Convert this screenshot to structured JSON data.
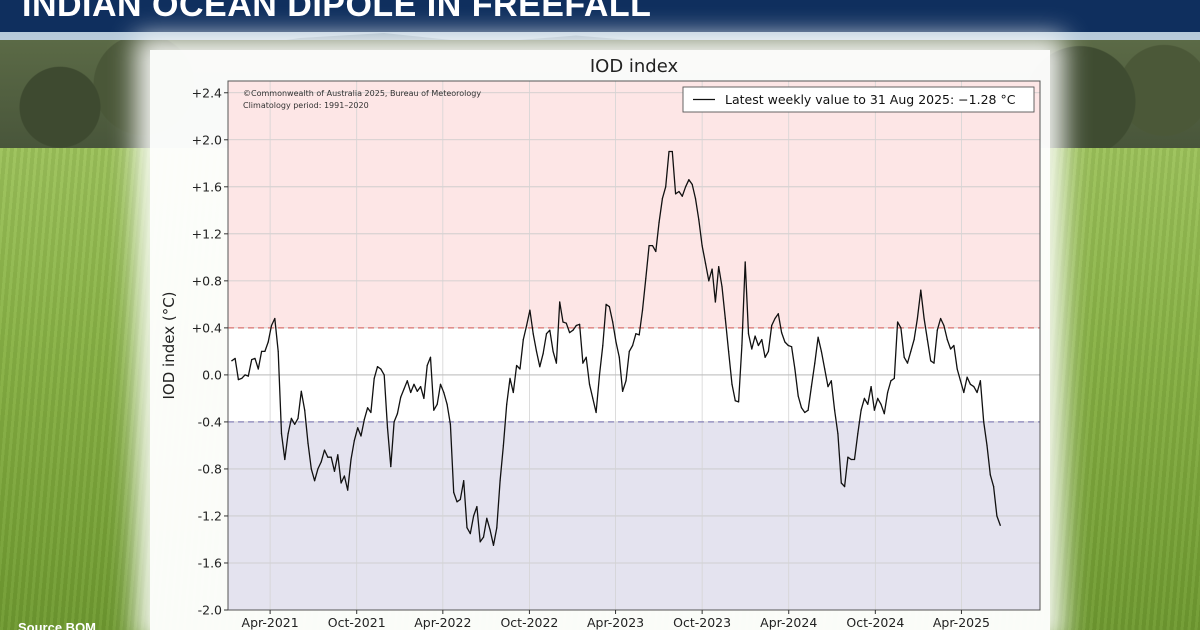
{
  "header": {
    "title": "INDIAN OCEAN DIPOLE IN FREEFALL"
  },
  "source": {
    "text": "Source BOM"
  },
  "chart_data": {
    "type": "line",
    "title": "IOD index",
    "ylabel": "IOD index (°C)",
    "xlabel": "",
    "ylim": [
      -2.0,
      2.5
    ],
    "yticks": [
      "+2.4",
      "+2.0",
      "+1.6",
      "+1.2",
      "+0.8",
      "+0.4",
      "0.0",
      "-0.4",
      "-0.8",
      "-1.2",
      "-1.6",
      "-2.0"
    ],
    "ytick_values": [
      2.4,
      2.0,
      1.6,
      1.2,
      0.8,
      0.4,
      0.0,
      -0.4,
      -0.8,
      -1.2,
      -1.6,
      -2.0
    ],
    "xticks": [
      "Apr-2021",
      "Oct-2021",
      "Apr-2022",
      "Oct-2022",
      "Apr-2023",
      "Oct-2023",
      "Apr-2024",
      "Oct-2024",
      "Apr-2025"
    ],
    "x_start": "2021-01-02",
    "x_end": "2025-09-14",
    "thresholds": {
      "positive": 0.4,
      "negative": -0.4
    },
    "grid": true,
    "legend_position": "top-right",
    "annotation_lines": [
      "©Commonwealth of Australia 2025, Bureau of Meteorology",
      "Climatology period: 1991–2020"
    ],
    "legend": "Latest weekly value to 31 Aug 2025: −1.28 °C",
    "colors": {
      "positive_band": "#fde6e6",
      "negative_band": "#e4e3ef",
      "positive_line": "#d9726f",
      "negative_line": "#8580b6",
      "series": "#111111",
      "title_bar": "#0f2f5e"
    },
    "series": [
      {
        "points": [
          [
            "2021-01-10",
            0.12
          ],
          [
            "2021-01-17",
            0.14
          ],
          [
            "2021-01-24",
            -0.04
          ],
          [
            "2021-01-31",
            -0.03
          ],
          [
            "2021-02-07",
            0.0
          ],
          [
            "2021-02-14",
            -0.01
          ],
          [
            "2021-02-21",
            0.13
          ],
          [
            "2021-02-28",
            0.14
          ],
          [
            "2021-03-07",
            0.05
          ],
          [
            "2021-03-14",
            0.2
          ],
          [
            "2021-03-21",
            0.2
          ],
          [
            "2021-03-28",
            0.28
          ],
          [
            "2021-04-04",
            0.42
          ],
          [
            "2021-04-11",
            0.48
          ],
          [
            "2021-04-18",
            0.2
          ],
          [
            "2021-04-25",
            -0.5
          ],
          [
            "2021-05-02",
            -0.72
          ],
          [
            "2021-05-09",
            -0.5
          ],
          [
            "2021-05-16",
            -0.37
          ],
          [
            "2021-05-23",
            -0.42
          ],
          [
            "2021-05-30",
            -0.37
          ],
          [
            "2021-06-06",
            -0.14
          ],
          [
            "2021-06-13",
            -0.3
          ],
          [
            "2021-06-20",
            -0.58
          ],
          [
            "2021-06-27",
            -0.8
          ],
          [
            "2021-07-04",
            -0.9
          ],
          [
            "2021-07-11",
            -0.8
          ],
          [
            "2021-07-18",
            -0.74
          ],
          [
            "2021-07-25",
            -0.64
          ],
          [
            "2021-08-01",
            -0.7
          ],
          [
            "2021-08-08",
            -0.7
          ],
          [
            "2021-08-15",
            -0.82
          ],
          [
            "2021-08-22",
            -0.68
          ],
          [
            "2021-08-29",
            -0.92
          ],
          [
            "2021-09-05",
            -0.86
          ],
          [
            "2021-09-12",
            -0.98
          ],
          [
            "2021-09-19",
            -0.72
          ],
          [
            "2021-09-26",
            -0.56
          ],
          [
            "2021-10-03",
            -0.45
          ],
          [
            "2021-10-10",
            -0.52
          ],
          [
            "2021-10-17",
            -0.38
          ],
          [
            "2021-10-24",
            -0.28
          ],
          [
            "2021-10-31",
            -0.32
          ],
          [
            "2021-11-07",
            -0.03
          ],
          [
            "2021-11-14",
            0.07
          ],
          [
            "2021-11-21",
            0.05
          ],
          [
            "2021-11-28",
            0.0
          ],
          [
            "2021-12-05",
            -0.45
          ],
          [
            "2021-12-12",
            -0.78
          ],
          [
            "2021-12-19",
            -0.4
          ],
          [
            "2021-12-26",
            -0.33
          ],
          [
            "2022-01-02",
            -0.19
          ],
          [
            "2022-01-09",
            -0.12
          ],
          [
            "2022-01-16",
            -0.05
          ],
          [
            "2022-01-23",
            -0.15
          ],
          [
            "2022-01-30",
            -0.08
          ],
          [
            "2022-02-06",
            -0.14
          ],
          [
            "2022-02-13",
            -0.1
          ],
          [
            "2022-02-20",
            -0.2
          ],
          [
            "2022-02-27",
            0.08
          ],
          [
            "2022-03-06",
            0.15
          ],
          [
            "2022-03-13",
            -0.3
          ],
          [
            "2022-03-20",
            -0.25
          ],
          [
            "2022-03-27",
            -0.08
          ],
          [
            "2022-04-03",
            -0.15
          ],
          [
            "2022-04-10",
            -0.25
          ],
          [
            "2022-04-17",
            -0.42
          ],
          [
            "2022-04-24",
            -1.0
          ],
          [
            "2022-05-01",
            -1.08
          ],
          [
            "2022-05-08",
            -1.06
          ],
          [
            "2022-05-15",
            -0.9
          ],
          [
            "2022-05-22",
            -1.3
          ],
          [
            "2022-05-29",
            -1.35
          ],
          [
            "2022-06-05",
            -1.2
          ],
          [
            "2022-06-12",
            -1.12
          ],
          [
            "2022-06-19",
            -1.42
          ],
          [
            "2022-06-26",
            -1.38
          ],
          [
            "2022-07-03",
            -1.22
          ],
          [
            "2022-07-10",
            -1.32
          ],
          [
            "2022-07-17",
            -1.45
          ],
          [
            "2022-07-24",
            -1.3
          ],
          [
            "2022-07-31",
            -0.9
          ],
          [
            "2022-08-07",
            -0.6
          ],
          [
            "2022-08-14",
            -0.25
          ],
          [
            "2022-08-21",
            -0.03
          ],
          [
            "2022-08-28",
            -0.15
          ],
          [
            "2022-09-04",
            0.08
          ],
          [
            "2022-09-11",
            0.05
          ],
          [
            "2022-09-18",
            0.3
          ],
          [
            "2022-09-25",
            0.42
          ],
          [
            "2022-10-02",
            0.55
          ],
          [
            "2022-10-09",
            0.35
          ],
          [
            "2022-10-16",
            0.2
          ],
          [
            "2022-10-23",
            0.07
          ],
          [
            "2022-10-30",
            0.18
          ],
          [
            "2022-11-06",
            0.35
          ],
          [
            "2022-11-13",
            0.38
          ],
          [
            "2022-11-20",
            0.2
          ],
          [
            "2022-11-27",
            0.1
          ],
          [
            "2022-12-04",
            0.62
          ],
          [
            "2022-12-11",
            0.45
          ],
          [
            "2022-12-18",
            0.44
          ],
          [
            "2022-12-25",
            0.36
          ],
          [
            "2023-01-01",
            0.38
          ],
          [
            "2023-01-08",
            0.42
          ],
          [
            "2023-01-15",
            0.43
          ],
          [
            "2023-01-22",
            0.1
          ],
          [
            "2023-01-29",
            0.15
          ],
          [
            "2023-02-05",
            -0.08
          ],
          [
            "2023-02-12",
            -0.2
          ],
          [
            "2023-02-19",
            -0.32
          ],
          [
            "2023-02-26",
            0.0
          ],
          [
            "2023-03-05",
            0.25
          ],
          [
            "2023-03-12",
            0.6
          ],
          [
            "2023-03-19",
            0.58
          ],
          [
            "2023-03-26",
            0.45
          ],
          [
            "2023-04-02",
            0.28
          ],
          [
            "2023-04-09",
            0.15
          ],
          [
            "2023-04-16",
            -0.14
          ],
          [
            "2023-04-23",
            -0.05
          ],
          [
            "2023-04-30",
            0.2
          ],
          [
            "2023-05-07",
            0.25
          ],
          [
            "2023-05-14",
            0.35
          ],
          [
            "2023-05-21",
            0.34
          ],
          [
            "2023-05-28",
            0.55
          ],
          [
            "2023-06-04",
            0.82
          ],
          [
            "2023-06-11",
            1.1
          ],
          [
            "2023-06-18",
            1.1
          ],
          [
            "2023-06-25",
            1.05
          ],
          [
            "2023-07-02",
            1.3
          ],
          [
            "2023-07-09",
            1.5
          ],
          [
            "2023-07-16",
            1.6
          ],
          [
            "2023-07-23",
            1.9
          ],
          [
            "2023-07-30",
            1.9
          ],
          [
            "2023-08-06",
            1.54
          ],
          [
            "2023-08-13",
            1.56
          ],
          [
            "2023-08-20",
            1.52
          ],
          [
            "2023-08-27",
            1.6
          ],
          [
            "2023-09-03",
            1.66
          ],
          [
            "2023-09-10",
            1.62
          ],
          [
            "2023-09-17",
            1.5
          ],
          [
            "2023-09-24",
            1.32
          ],
          [
            "2023-10-01",
            1.1
          ],
          [
            "2023-10-08",
            0.95
          ],
          [
            "2023-10-15",
            0.8
          ],
          [
            "2023-10-22",
            0.9
          ],
          [
            "2023-10-29",
            0.62
          ],
          [
            "2023-11-05",
            0.92
          ],
          [
            "2023-11-12",
            0.75
          ],
          [
            "2023-11-19",
            0.48
          ],
          [
            "2023-11-26",
            0.2
          ],
          [
            "2023-12-03",
            -0.08
          ],
          [
            "2023-12-10",
            -0.22
          ],
          [
            "2023-12-17",
            -0.23
          ],
          [
            "2023-12-24",
            0.25
          ],
          [
            "2023-12-31",
            0.96
          ],
          [
            "2024-01-07",
            0.35
          ],
          [
            "2024-01-14",
            0.22
          ],
          [
            "2024-01-21",
            0.33
          ],
          [
            "2024-01-28",
            0.25
          ],
          [
            "2024-02-04",
            0.3
          ],
          [
            "2024-02-11",
            0.15
          ],
          [
            "2024-02-18",
            0.2
          ],
          [
            "2024-02-25",
            0.42
          ],
          [
            "2024-03-03",
            0.48
          ],
          [
            "2024-03-10",
            0.52
          ],
          [
            "2024-03-17",
            0.36
          ],
          [
            "2024-03-24",
            0.28
          ],
          [
            "2024-03-31",
            0.25
          ],
          [
            "2024-04-07",
            0.24
          ],
          [
            "2024-04-14",
            0.05
          ],
          [
            "2024-04-21",
            -0.18
          ],
          [
            "2024-04-28",
            -0.28
          ],
          [
            "2024-05-05",
            -0.32
          ],
          [
            "2024-05-12",
            -0.3
          ],
          [
            "2024-05-19",
            -0.1
          ],
          [
            "2024-05-26",
            0.1
          ],
          [
            "2024-06-02",
            0.32
          ],
          [
            "2024-06-09",
            0.2
          ],
          [
            "2024-06-16",
            0.05
          ],
          [
            "2024-06-23",
            -0.1
          ],
          [
            "2024-06-30",
            -0.05
          ],
          [
            "2024-07-07",
            -0.3
          ],
          [
            "2024-07-14",
            -0.5
          ],
          [
            "2024-07-21",
            -0.92
          ],
          [
            "2024-07-28",
            -0.95
          ],
          [
            "2024-08-04",
            -0.7
          ],
          [
            "2024-08-11",
            -0.72
          ],
          [
            "2024-08-18",
            -0.72
          ],
          [
            "2024-08-25",
            -0.5
          ],
          [
            "2024-09-01",
            -0.3
          ],
          [
            "2024-09-08",
            -0.2
          ],
          [
            "2024-09-15",
            -0.25
          ],
          [
            "2024-09-22",
            -0.1
          ],
          [
            "2024-09-29",
            -0.3
          ],
          [
            "2024-10-06",
            -0.2
          ],
          [
            "2024-10-13",
            -0.25
          ],
          [
            "2024-10-20",
            -0.33
          ],
          [
            "2024-10-27",
            -0.15
          ],
          [
            "2024-11-03",
            -0.05
          ],
          [
            "2024-11-10",
            -0.03
          ],
          [
            "2024-11-17",
            0.45
          ],
          [
            "2024-11-24",
            0.4
          ],
          [
            "2024-12-01",
            0.15
          ],
          [
            "2024-12-08",
            0.1
          ],
          [
            "2024-12-15",
            0.2
          ],
          [
            "2024-12-22",
            0.3
          ],
          [
            "2024-12-29",
            0.48
          ],
          [
            "2025-01-05",
            0.72
          ],
          [
            "2025-01-12",
            0.48
          ],
          [
            "2025-01-19",
            0.3
          ],
          [
            "2025-01-26",
            0.12
          ],
          [
            "2025-02-02",
            0.1
          ],
          [
            "2025-02-09",
            0.38
          ],
          [
            "2025-02-16",
            0.48
          ],
          [
            "2025-02-23",
            0.42
          ],
          [
            "2025-03-02",
            0.3
          ],
          [
            "2025-03-09",
            0.22
          ],
          [
            "2025-03-16",
            0.25
          ],
          [
            "2025-03-23",
            0.05
          ],
          [
            "2025-03-30",
            -0.05
          ],
          [
            "2025-04-06",
            -0.15
          ],
          [
            "2025-04-13",
            -0.02
          ],
          [
            "2025-04-20",
            -0.08
          ],
          [
            "2025-04-27",
            -0.1
          ],
          [
            "2025-05-04",
            -0.15
          ],
          [
            "2025-05-11",
            -0.05
          ],
          [
            "2025-05-18",
            -0.4
          ],
          [
            "2025-05-25",
            -0.6
          ],
          [
            "2025-06-01",
            -0.85
          ],
          [
            "2025-06-08",
            -0.95
          ],
          [
            "2025-06-15",
            -1.2
          ],
          [
            "2025-06-22",
            -1.28
          ]
        ]
      }
    ]
  }
}
